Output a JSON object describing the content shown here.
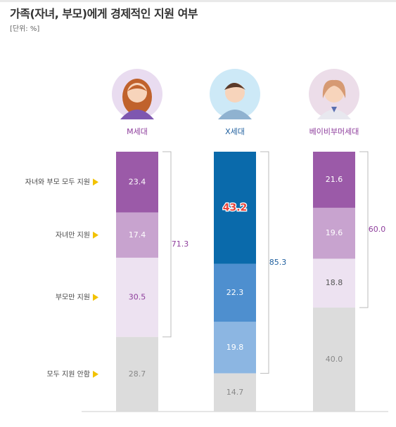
{
  "header": {
    "title": "가족(자녀, 부모)에게 경제적인 지원 여부",
    "unit": "[단위: %]"
  },
  "colors": {
    "m_series": [
      "#9b5aa8",
      "#c8a3cf",
      "#ede2f1",
      "#dcdcdc"
    ],
    "x_series": [
      "#0a6aab",
      "#4e8fcf",
      "#8cb6e2",
      "#dcdcdc"
    ],
    "b_series": [
      "#9b5aa8",
      "#c8a3cf",
      "#ede2f1",
      "#dcdcdc"
    ],
    "accent_purple": "#8e3e9c",
    "accent_blue": "#1f5f9e",
    "arrow": "#f2c200"
  },
  "chart_data": {
    "type": "bar",
    "stacked": true,
    "categories": [
      "자녀와 부모 모두 지원",
      "자녀만 지원",
      "부모만 지원",
      "모두 지원 안함"
    ],
    "groups": [
      {
        "name": "M세대",
        "avatar_icon": "woman-avatar-icon",
        "values": [
          23.4,
          17.4,
          30.5,
          28.7
        ],
        "bracket_total": "71.3"
      },
      {
        "name": "X세대",
        "avatar_icon": "man-avatar-icon",
        "values": [
          43.2,
          22.3,
          19.8,
          14.7
        ],
        "bracket_total": "85.3"
      },
      {
        "name": "베이비부머세대",
        "avatar_icon": "older-woman-avatar-icon",
        "values": [
          21.6,
          19.6,
          18.8,
          40.0
        ],
        "bracket_total": "60.0"
      }
    ],
    "ylim": [
      0,
      100
    ],
    "grid": false,
    "legend": "left"
  }
}
